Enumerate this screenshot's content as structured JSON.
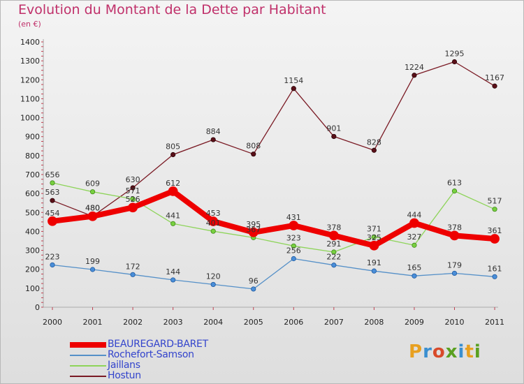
{
  "title": "Evolution du Montant de la Dette par Habitant",
  "unit": "(en €)",
  "logo": {
    "text": "Proxiti",
    "letters": [
      {
        "ch": "P",
        "color": "#e8a020"
      },
      {
        "ch": "r",
        "color": "#3a8fd0"
      },
      {
        "ch": "o",
        "color": "#d84a2a"
      },
      {
        "ch": "x",
        "color": "#5aa020"
      },
      {
        "ch": "i",
        "color": "#3a8fd0"
      },
      {
        "ch": "t",
        "color": "#e8a020"
      },
      {
        "ch": "i",
        "color": "#5aa020"
      }
    ]
  },
  "chart_data": {
    "type": "line",
    "title": "Evolution du Montant de la Dette par Habitant",
    "ylabel": "(en €)",
    "xlabel": "",
    "x": [
      "2000",
      "2001",
      "2002",
      "2003",
      "2004",
      "2005",
      "2006",
      "2007",
      "2008",
      "2009",
      "2010",
      "2011"
    ],
    "ylim": [
      0,
      1400
    ],
    "yticks": [
      "0",
      "100",
      "200",
      "300",
      "400",
      "500",
      "600",
      "700",
      "800",
      "900",
      "1000",
      "1100",
      "1200",
      "1300",
      "1400"
    ],
    "grid": false,
    "legend": "bottom-left",
    "series": [
      {
        "name": "Hostun",
        "color": "#7a1a24",
        "values": [
          563,
          480,
          630,
          805,
          884,
          808,
          1154,
          901,
          828,
          1224,
          1295,
          1167
        ],
        "labels": [
          "563",
          "480",
          "630",
          "805",
          "884",
          "808",
          "1154",
          "901",
          "828",
          "1224",
          "1295",
          "1167"
        ]
      },
      {
        "name": "Jaillans",
        "color": "#8ed45a",
        "values": [
          656,
          609,
          571,
          441,
          401,
          367,
          323,
          291,
          371,
          327,
          613,
          517
        ],
        "labels": [
          "656",
          "609",
          "571",
          "441",
          "401",
          "367",
          "323",
          "291",
          "371",
          "327",
          "613",
          "517"
        ]
      },
      {
        "name": "Rochefort-Samson",
        "color": "#5590c8",
        "values": [
          223,
          199,
          172,
          144,
          120,
          96,
          256,
          222,
          191,
          165,
          179,
          161
        ],
        "labels": [
          "223",
          "199",
          "172",
          "144",
          "120",
          "96",
          "256",
          "222",
          "191",
          "165",
          "179",
          "161"
        ]
      },
      {
        "name": "BEAUREGARD-BARET",
        "color": "#ee0000",
        "values": [
          454,
          480,
          526,
          612,
          453,
          395,
          431,
          378,
          325,
          444,
          378,
          361
        ],
        "labels": [
          "454",
          "480",
          "526",
          "612",
          "453",
          "395",
          "431",
          "378",
          "325",
          "444",
          "378",
          "361"
        ]
      }
    ],
    "legend_order": [
      "BEAUREGARD-BARET",
      "Rochefort-Samson",
      "Jaillans",
      "Hostun"
    ]
  }
}
